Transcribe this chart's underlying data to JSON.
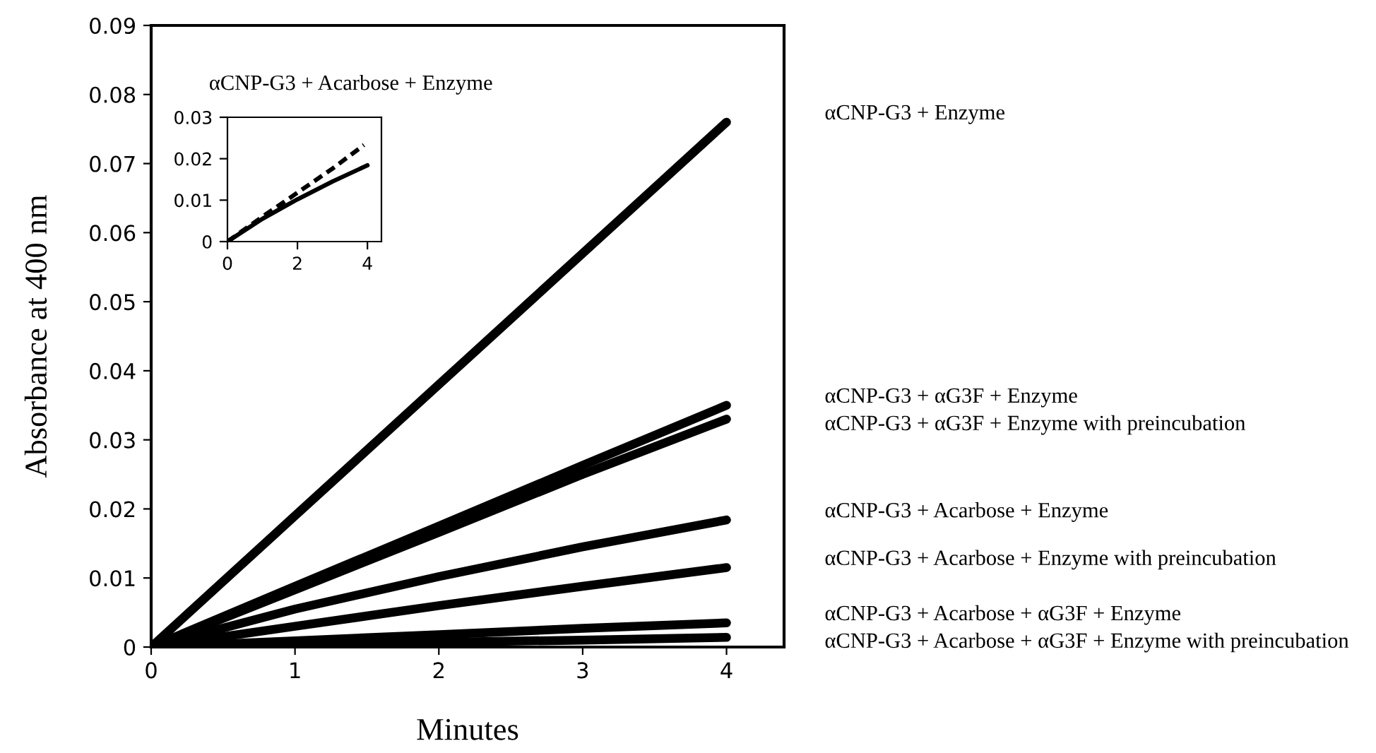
{
  "chart_data": [
    {
      "type": "line",
      "xlabel": "Minutes",
      "ylabel": "Absorbance at 400 nm",
      "x": [
        0,
        1,
        2,
        3,
        4
      ],
      "xlim": [
        0,
        4.4
      ],
      "xticks": [
        0,
        1,
        2,
        3,
        4
      ],
      "ylim": [
        0,
        0.09
      ],
      "yticks": [
        0,
        0.01,
        0.02,
        0.03,
        0.04,
        0.05,
        0.06,
        0.07,
        0.08,
        0.09
      ],
      "grid": false,
      "legend": false,
      "marker": "none",
      "line_style": "solid",
      "series": [
        {
          "name": "αCNP-G3 + Enzyme",
          "color": "#000000",
          "values": [
            0,
            0.019,
            0.038,
            0.057,
            0.076
          ]
        },
        {
          "name": "αCNP-G3 + αG3F + Enzyme",
          "color": "#000000",
          "values": [
            0,
            0.0088,
            0.0175,
            0.0263,
            0.035
          ]
        },
        {
          "name": "αCNP-G3 + αG3F + Enzyme with preincubation",
          "color": "#000000",
          "values": [
            0,
            0.0083,
            0.0166,
            0.025,
            0.033
          ]
        },
        {
          "name": "αCNP-G3 + Acarbose + Enzyme",
          "color": "#000000",
          "values": [
            0,
            0.0055,
            0.0102,
            0.0145,
            0.0184
          ]
        },
        {
          "name": "αCNP-G3 + Acarbose + Enzyme with preincubation",
          "color": "#000000",
          "values": [
            0,
            0.003,
            0.006,
            0.0088,
            0.0115
          ]
        },
        {
          "name": "αCNP-G3 + Acarbose + αG3F + Enzyme",
          "color": "#000000",
          "values": [
            0,
            0.0009,
            0.0018,
            0.0027,
            0.0035
          ]
        },
        {
          "name": "αCNP-G3 + Acarbose + αG3F + Enzyme with preincubation",
          "color": "#000000",
          "values": [
            0,
            0.0004,
            0.0007,
            0.001,
            0.0014
          ]
        }
      ]
    },
    {
      "type": "line",
      "title": "αCNP-G3 + Acarbose + Enzyme",
      "xlim": [
        0,
        4.4
      ],
      "xticks": [
        0,
        2,
        4
      ],
      "ylim": [
        0,
        0.03
      ],
      "yticks": [
        0,
        0.01,
        0.02,
        0.03
      ],
      "grid": false,
      "legend": false,
      "marker": "none",
      "series": [
        {
          "color": "#000000",
          "line_style": "dashed",
          "x": [
            0,
            1,
            2,
            3,
            3.9
          ],
          "values": [
            0,
            0.006,
            0.0118,
            0.0176,
            0.0233
          ]
        },
        {
          "color": "#000000",
          "line_style": "solid",
          "x": [
            0,
            1,
            2,
            3,
            4
          ],
          "values": [
            0,
            0.0055,
            0.0102,
            0.0145,
            0.0184
          ]
        }
      ]
    }
  ]
}
